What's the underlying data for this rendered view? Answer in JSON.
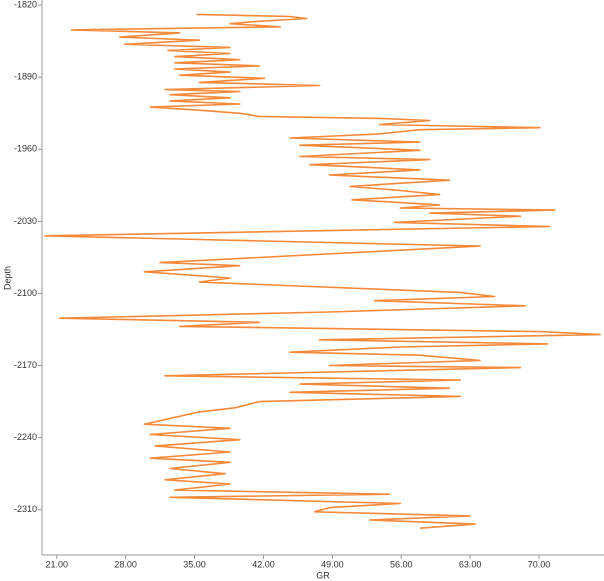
{
  "chart_data": {
    "type": "line",
    "xlabel": "GR",
    "ylabel": "Depth",
    "color": "#f5893a",
    "xlim": [
      19.5,
      76.6
    ],
    "ylim": [
      -2354,
      -1815
    ],
    "xticks": [
      {
        "value": 21,
        "label": "21.00"
      },
      {
        "value": 28,
        "label": "28.00"
      },
      {
        "value": 35,
        "label": "35.00"
      },
      {
        "value": 42,
        "label": "42.00"
      },
      {
        "value": 49,
        "label": "49.00"
      },
      {
        "value": 56,
        "label": "56.00"
      },
      {
        "value": 63,
        "label": "63.00"
      },
      {
        "value": 70,
        "label": "70.00"
      }
    ],
    "yticks": [
      -1820,
      -1890,
      -1960,
      -2030,
      -2100,
      -2170,
      -2240,
      -2310
    ],
    "x": [
      35.2,
      44.7,
      46.4,
      41.1,
      38.6,
      43.7,
      22.5,
      33.5,
      27.4,
      35.5,
      27.9,
      38.6,
      32.3,
      38.6,
      33.0,
      39.6,
      33.0,
      41.6,
      33.0,
      38.6,
      33.5,
      42.1,
      35.5,
      47.7,
      32.0,
      39.6,
      32.5,
      38.6,
      32.5,
      39.6,
      30.5,
      35.5,
      39.6,
      41.6,
      53.8,
      58.9,
      53.8,
      70.1,
      57.9,
      53.8,
      44.7,
      57.9,
      45.7,
      57.9,
      45.7,
      58.9,
      46.7,
      57.9,
      48.7,
      60.9,
      50.8,
      55.9,
      59.9,
      51.0,
      59.9,
      55.9,
      71.6,
      58.9,
      68.1,
      55.3,
      71.1,
      19.8,
      64.0,
      31.5,
      39.6,
      29.9,
      38.6,
      35.5,
      62.0,
      65.5,
      53.3,
      68.6,
      48.7,
      21.3,
      41.6,
      33.5,
      70.1,
      76.2,
      47.7,
      70.9,
      55.9,
      44.7,
      57.9,
      64.0,
      48.7,
      68.1,
      32.0,
      62.0,
      45.7,
      60.9,
      44.7,
      62.0,
      41.6,
      39.1,
      35.5,
      29.9,
      38.6,
      30.5,
      39.6,
      31.0,
      38.6,
      30.5,
      38.6,
      32.5,
      38.1,
      32.0,
      38.6,
      33.0,
      54.8,
      32.5,
      55.9,
      48.7,
      47.2,
      63.0,
      52.8,
      63.5,
      57.9
    ],
    "y": [
      -1829,
      -1831,
      -1833,
      -1836,
      -1838,
      -1841,
      -1844,
      -1847,
      -1851,
      -1854,
      -1858,
      -1861,
      -1864,
      -1867,
      -1870,
      -1873,
      -1876,
      -1879,
      -1882,
      -1885,
      -1888,
      -1891,
      -1895,
      -1898,
      -1902,
      -1904,
      -1907,
      -1910,
      -1913,
      -1916,
      -1919,
      -1922,
      -1925,
      -1928,
      -1930,
      -1932,
      -1936,
      -1939,
      -1941,
      -1945,
      -1949,
      -1953,
      -1956,
      -1961,
      -1967,
      -1970,
      -1975,
      -1980,
      -1985,
      -1990,
      -1996,
      -2000,
      -2004,
      -2009,
      -2014,
      -2017,
      -2019,
      -2022,
      -2025,
      -2031,
      -2035,
      -2044,
      -2054,
      -2070,
      -2073,
      -2079,
      -2085,
      -2089,
      -2099,
      -2103,
      -2107,
      -2112,
      -2118,
      -2124,
      -2128,
      -2132,
      -2137,
      -2140,
      -2145,
      -2149,
      -2152,
      -2157,
      -2160,
      -2165,
      -2170,
      -2172,
      -2180,
      -2184,
      -2188,
      -2192,
      -2196,
      -2200,
      -2205,
      -2211,
      -2215,
      -2227,
      -2231,
      -2237,
      -2242,
      -2248,
      -2254,
      -2260,
      -2264,
      -2270,
      -2275,
      -2281,
      -2285,
      -2291,
      -2295,
      -2298,
      -2304,
      -2308,
      -2312,
      -2316,
      -2320,
      -2324,
      -2328
    ]
  }
}
